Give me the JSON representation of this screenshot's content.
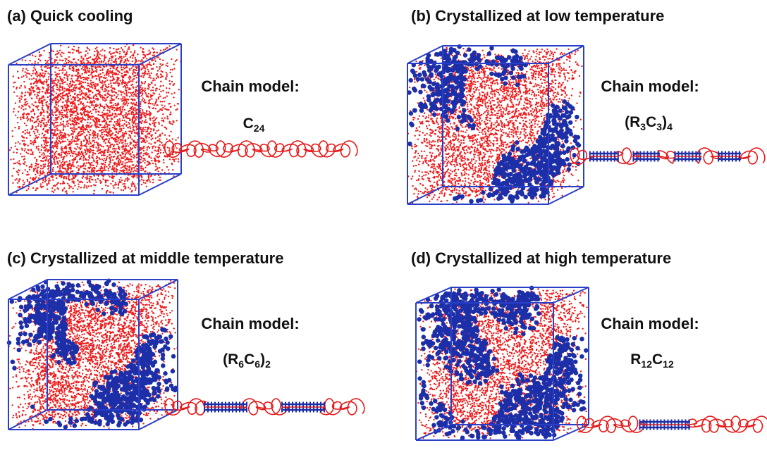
{
  "panels": [
    {
      "title": "(a) Quick cooling",
      "chain_label": "Chain model:",
      "formula": [
        {
          "text": "C"
        },
        {
          "sub": "24"
        }
      ]
    },
    {
      "title": "(b) Crystallized at low temperature",
      "chain_label": "Chain model:",
      "formula": [
        {
          "text": "(R"
        },
        {
          "sub": "3"
        },
        {
          "text": "C"
        },
        {
          "sub": "3"
        },
        {
          "text": ")"
        },
        {
          "sub": "4"
        }
      ]
    },
    {
      "title": "(c) Crystallized at middle temperature",
      "chain_label": "Chain model:",
      "formula": [
        {
          "text": "(R"
        },
        {
          "sub": "6"
        },
        {
          "text": "C"
        },
        {
          "sub": "6"
        },
        {
          "text": ")"
        },
        {
          "sub": "2"
        }
      ]
    },
    {
      "title": "(d) Crystallized at high temperature",
      "chain_label": "Chain model:",
      "formula": [
        {
          "text": "R"
        },
        {
          "sub": "12"
        },
        {
          "text": "C"
        },
        {
          "sub": "12"
        }
      ]
    }
  ]
}
